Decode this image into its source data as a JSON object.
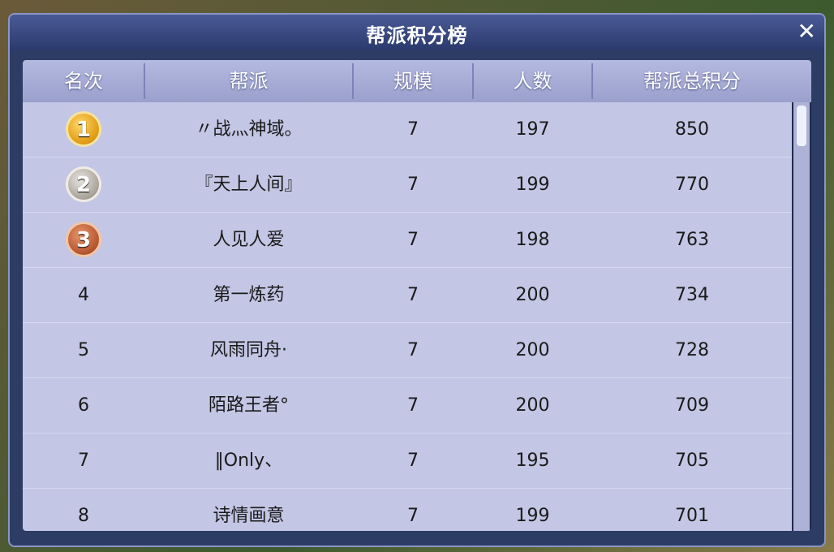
{
  "title": "帮派积分榜",
  "table": {
    "header": [
      "名次",
      "帮派",
      "规模",
      "人数",
      "帮派总积分"
    ],
    "rows": [
      [
        1,
        "〃战灬神域。",
        7,
        197,
        850
      ],
      [
        2,
        "『天上人间』",
        7,
        199,
        770
      ],
      [
        3,
        "人见人爱",
        7,
        198,
        763
      ],
      [
        4,
        "第一炼药",
        7,
        200,
        734
      ],
      [
        5,
        "风雨同舟·",
        7,
        200,
        728
      ],
      [
        6,
        "陌路王者°",
        7,
        200,
        709
      ],
      [
        7,
        "‖Only、",
        7,
        195,
        705
      ],
      [
        8,
        "诗情画意",
        7,
        199,
        701
      ]
    ]
  }
}
